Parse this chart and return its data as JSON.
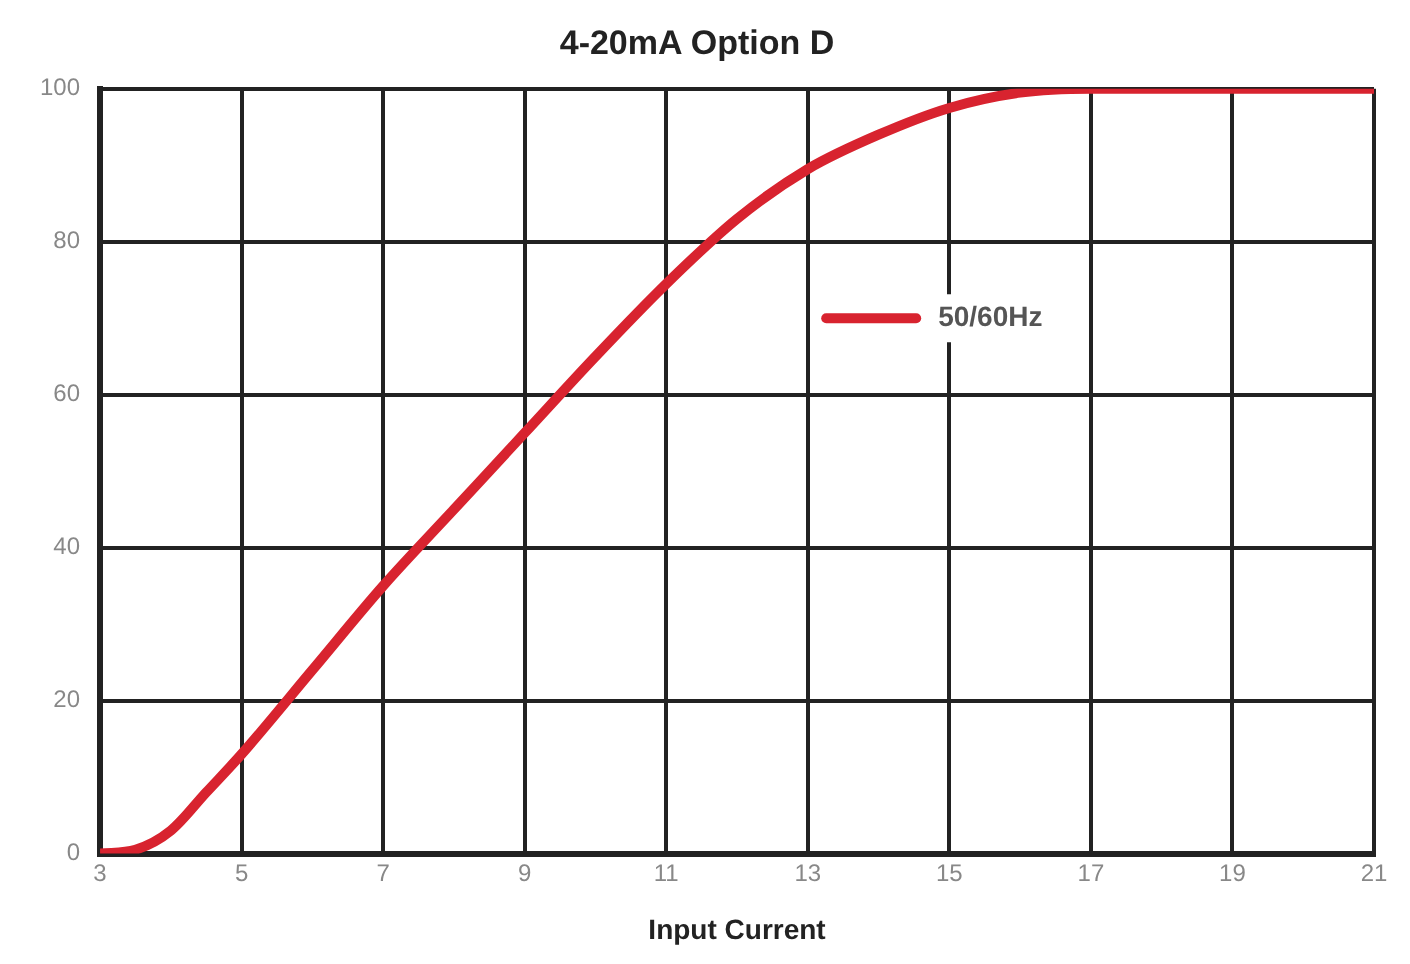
{
  "chart_data": {
    "type": "line",
    "title": "4-20mA Option D",
    "xlabel": "Input Current",
    "x": [
      3,
      3.5,
      4,
      4.5,
      5,
      6,
      7,
      8,
      9,
      10,
      11,
      12,
      13,
      14,
      15,
      16,
      17,
      21
    ],
    "series": [
      {
        "name": "50/60Hz",
        "color": "#d8232f",
        "values": [
          0,
          0.5,
          3,
          8,
          13,
          24,
          35,
          45,
          55,
          65,
          74.5,
          83,
          89.5,
          94,
          97.5,
          99.5,
          100,
          100
        ]
      }
    ],
    "xlim": [
      3,
      21
    ],
    "xticks": [
      3,
      5,
      7,
      9,
      11,
      13,
      15,
      17,
      19,
      21
    ],
    "ylim": [
      0,
      100
    ],
    "yticks": [
      0,
      20,
      40,
      60,
      80,
      100
    ],
    "grid": true,
    "legend": "right",
    "marker": "none",
    "line_style": "solid"
  }
}
